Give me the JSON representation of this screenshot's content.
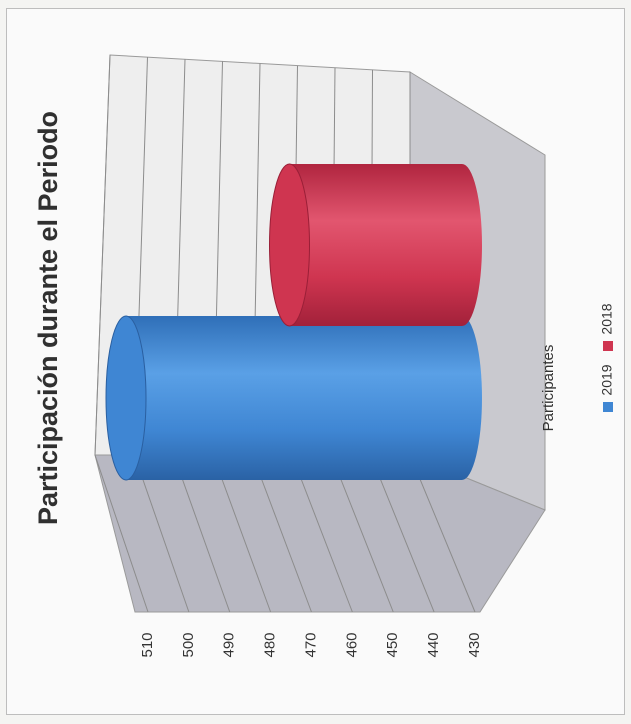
{
  "chart_data": {
    "type": "bar",
    "title": "Participación durante el Periodo",
    "categories": [
      "Participantes"
    ],
    "series": [
      {
        "name": "2019",
        "values": [
          510
        ],
        "color": "#3f86d3"
      },
      {
        "name": "2018",
        "values": [
          470
        ],
        "color": "#cf3550"
      }
    ],
    "ylim": [
      430,
      510
    ],
    "yticks": [
      510,
      500,
      490,
      480,
      470,
      460,
      450,
      440,
      430
    ],
    "shape": "cylinder",
    "orientation": "rotated-90",
    "grid": true,
    "legend": "bottom"
  }
}
